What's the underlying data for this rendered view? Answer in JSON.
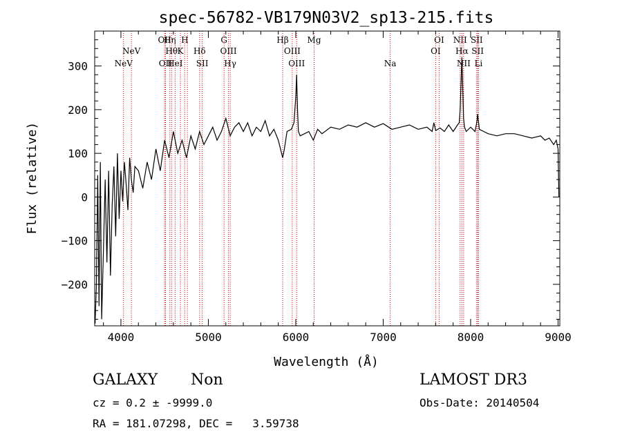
{
  "chart_data": {
    "type": "line",
    "title": "spec-56782-VB179N03V2_sp13-215.fits",
    "xlabel": "Wavelength (Å)",
    "ylabel": "Flux (relative)",
    "xlim": [
      3700,
      9020
    ],
    "ylim": [
      -295,
      380
    ],
    "xticks": [
      4000,
      5000,
      6000,
      7000,
      8000,
      9000
    ],
    "yticks": [
      -200,
      -100,
      0,
      100,
      200,
      300
    ],
    "line_color": "#000000",
    "marker_color": "#cc0000",
    "series": [
      {
        "x": [
          3705,
          3720,
          3735,
          3750,
          3765,
          3780,
          3800,
          3820,
          3840,
          3860,
          3880,
          3900,
          3920,
          3940,
          3960,
          3980,
          4000,
          4020,
          4040,
          4060,
          4080,
          4100,
          4120,
          4140,
          4160,
          4200,
          4250,
          4300,
          4350,
          4400,
          4450,
          4500,
          4550,
          4600,
          4650,
          4700,
          4750,
          4800,
          4850,
          4900,
          4950,
          5000,
          5050,
          5100,
          5150,
          5200,
          5250,
          5300,
          5350,
          5400,
          5450,
          5500,
          5550,
          5600,
          5650,
          5700,
          5750,
          5800,
          5850,
          5870,
          5900,
          5950,
          5980,
          6000,
          6010,
          6020,
          6030,
          6050,
          6100,
          6150,
          6200,
          6250,
          6300,
          6400,
          6500,
          6600,
          6700,
          6800,
          6900,
          7000,
          7100,
          7200,
          7300,
          7400,
          7500,
          7560,
          7580,
          7600,
          7650,
          7700,
          7750,
          7800,
          7850,
          7870,
          7880,
          7890,
          7900,
          7910,
          7920,
          7930,
          7950,
          8000,
          8050,
          8070,
          8080,
          8100,
          8150,
          8200,
          8300,
          8400,
          8500,
          8600,
          8700,
          8800,
          8850,
          8900,
          8950,
          8980,
          9000,
          9010
        ],
        "y": [
          -290,
          -200,
          50,
          -250,
          80,
          -280,
          -120,
          40,
          -150,
          60,
          -180,
          -20,
          70,
          -90,
          100,
          -50,
          60,
          -10,
          80,
          30,
          -30,
          90,
          40,
          10,
          70,
          60,
          20,
          80,
          40,
          110,
          60,
          130,
          90,
          150,
          100,
          130,
          90,
          140,
          110,
          150,
          120,
          140,
          160,
          130,
          150,
          180,
          140,
          160,
          170,
          150,
          170,
          140,
          160,
          150,
          175,
          140,
          155,
          130,
          90,
          110,
          150,
          155,
          170,
          230,
          280,
          200,
          150,
          140,
          145,
          150,
          130,
          155,
          145,
          160,
          155,
          165,
          160,
          170,
          160,
          168,
          155,
          160,
          165,
          155,
          160,
          150,
          170,
          152,
          158,
          150,
          165,
          150,
          165,
          170,
          200,
          260,
          320,
          250,
          180,
          160,
          150,
          160,
          150,
          170,
          190,
          155,
          150,
          145,
          140,
          145,
          145,
          140,
          135,
          140,
          130,
          135,
          120,
          130,
          110,
          0
        ]
      }
    ],
    "lines": [
      {
        "x": 4030,
        "top": "NeV",
        "row": 3
      },
      {
        "x": 4120,
        "top": "NeV",
        "row": 2
      },
      {
        "x": 4500,
        "top": "OII",
        "row": 1
      },
      {
        "x": 4510,
        "top": "OII",
        "row": 3
      },
      {
        "x": 4560,
        "top": "Hη",
        "row": 1
      },
      {
        "x": 4580,
        "top": "Hθ",
        "row": 2
      },
      {
        "x": 4620,
        "top": "HeI",
        "row": 3
      },
      {
        "x": 4680,
        "top": "K",
        "row": 2
      },
      {
        "x": 4730,
        "top": "H",
        "row": 1
      },
      {
        "x": 4760,
        "top": "",
        "row": 0
      },
      {
        "x": 4900,
        "top": "Hδ",
        "row": 2
      },
      {
        "x": 4930,
        "top": "SII",
        "row": 3
      },
      {
        "x": 5180,
        "top": "G",
        "row": 1
      },
      {
        "x": 5230,
        "top": "OIII",
        "row": 2
      },
      {
        "x": 5250,
        "top": "Hγ",
        "row": 3
      },
      {
        "x": 5850,
        "top": "Hβ",
        "row": 1
      },
      {
        "x": 5960,
        "top": "OIII",
        "row": 2
      },
      {
        "x": 6010,
        "top": "OIII",
        "row": 3
      },
      {
        "x": 6210,
        "top": "Mg",
        "row": 1
      },
      {
        "x": 7080,
        "top": "Na",
        "row": 3
      },
      {
        "x": 7600,
        "top": "OI",
        "row": 2
      },
      {
        "x": 7640,
        "top": "OI",
        "row": 1
      },
      {
        "x": 7880,
        "top": "NII",
        "row": 1
      },
      {
        "x": 7900,
        "top": "Hα",
        "row": 2
      },
      {
        "x": 7920,
        "top": "NII",
        "row": 3
      },
      {
        "x": 8070,
        "top": "SII",
        "row": 1
      },
      {
        "x": 8080,
        "top": "SII",
        "row": 2
      },
      {
        "x": 8090,
        "top": "Li",
        "row": 3
      }
    ]
  },
  "footer": {
    "class_label": "GALAXY",
    "subclass_label": "Non",
    "cz_text": "cz = 0.2 ± -9999.0",
    "radec_text": "RA = 181.07298, DEC =   3.59738",
    "survey_label": "LAMOST DR3",
    "obs_date_text": "Obs-Date: 20140504"
  }
}
